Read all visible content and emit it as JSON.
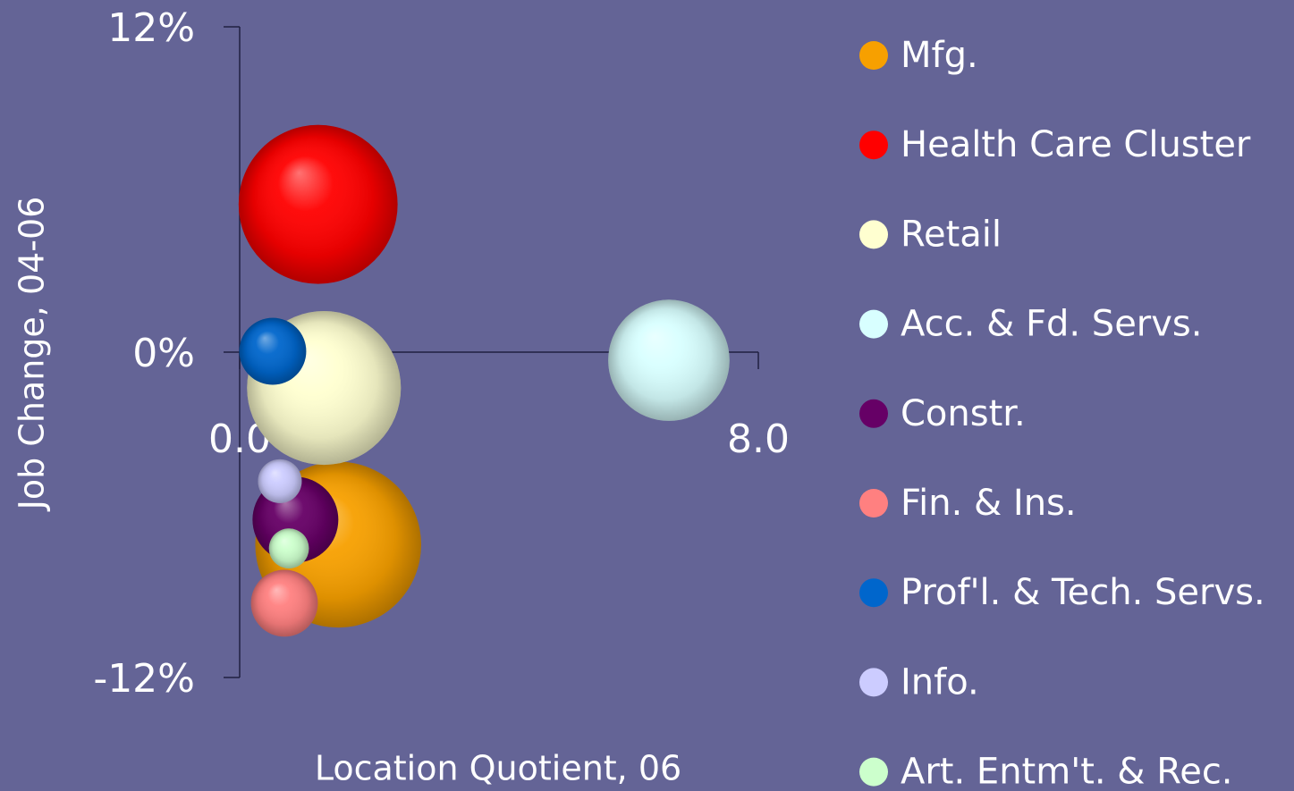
{
  "chart_data": {
    "type": "bubble",
    "xlabel": "Location Quotient, 06",
    "ylabel": "Job Change, 04-06",
    "xlim": [
      0,
      8
    ],
    "xticks": [
      {
        "value": 0,
        "label": "0.0"
      },
      {
        "value": 8,
        "label": "8.0"
      }
    ],
    "ylim": [
      -12,
      12
    ],
    "yticks": [
      {
        "value": 12,
        "label": "12%"
      },
      {
        "value": 0,
        "label": "0%"
      },
      {
        "value": -12,
        "label": "-12%"
      }
    ],
    "legend": "right",
    "series": [
      {
        "name": "Mfg.",
        "color": "#f7a000",
        "x": [
          1.52
        ],
        "values": [
          -7.1
        ],
        "sizes": [
          86
        ]
      },
      {
        "name": "Health Care Cluster",
        "color": "#ff0000",
        "x": [
          1.21
        ],
        "values": [
          5.45
        ],
        "sizes": [
          79
        ]
      },
      {
        "name": "Retail",
        "color": "#ffffd0",
        "x": [
          1.3
        ],
        "values": [
          -1.32
        ],
        "sizes": [
          74
        ]
      },
      {
        "name": "Acc. & Fd. Servs.",
        "color": "#d8ffff",
        "x": [
          6.62
        ],
        "values": [
          -0.3
        ],
        "sizes": [
          46
        ]
      },
      {
        "name": "Constr.",
        "color": "#660066",
        "x": [
          0.86
        ],
        "values": [
          -6.18
        ],
        "sizes": [
          23
        ]
      },
      {
        "name": "Fin. & Ins.",
        "color": "#ff8080",
        "x": [
          0.69
        ],
        "values": [
          -9.26
        ],
        "sizes": [
          14
        ]
      },
      {
        "name": "Prof'l. & Tech. Servs.",
        "color": "#0066cc",
        "x": [
          0.51
        ],
        "values": [
          0.03
        ],
        "sizes": [
          14
        ]
      },
      {
        "name": "Info.",
        "color": "#ccccff",
        "x": [
          0.62
        ],
        "values": [
          -4.76
        ],
        "sizes": [
          6
        ]
      },
      {
        "name": "Art. Entm't. & Rec.",
        "color": "#ccffcc",
        "x": [
          0.76
        ],
        "values": [
          -7.24
        ],
        "sizes": [
          5
        ]
      }
    ]
  }
}
